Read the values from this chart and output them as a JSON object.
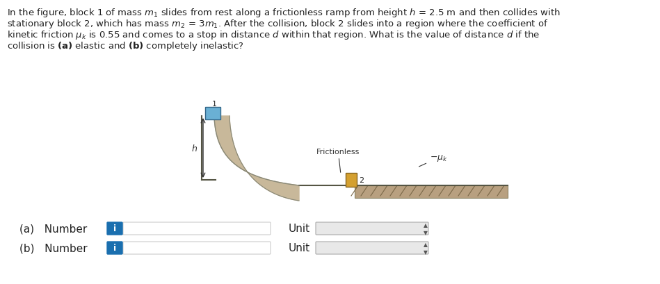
{
  "background_color": "#ffffff",
  "label_a": "(a)   Number",
  "label_b": "(b)   Number",
  "label_unit": "Unit",
  "info_button_color": "#1a6faf",
  "info_button_text": "i",
  "input_box_color": "#ffffff",
  "input_box_border": "#cccccc",
  "ramp_color": "#c8b89a",
  "ramp_outline": "#888877",
  "block1_color": "#6ab0d4",
  "block2_color": "#d4a030",
  "frictionless_label": "Frictionless",
  "muk_label": "$-\\mu_k$",
  "h_label": "$h$",
  "block1_label": "1",
  "block2_label": "2",
  "text_lines": [
    "In the figure, block 1 of mass $m_1$ slides from rest along a frictionless ramp from height $h$ = 2.5 m and then collides with",
    "stationary block 2, which has mass $m_2$ = 3$m_1$. After the collision, block 2 slides into a region where the coefficient of",
    "kinetic friction $\\mu_k$ is 0.55 and comes to a stop in distance $d$ within that region. What is the value of distance $d$ if the",
    "collision is $\\mathbf{(a)}$ elastic and $\\mathbf{(b)}$ completely inelastic?"
  ]
}
